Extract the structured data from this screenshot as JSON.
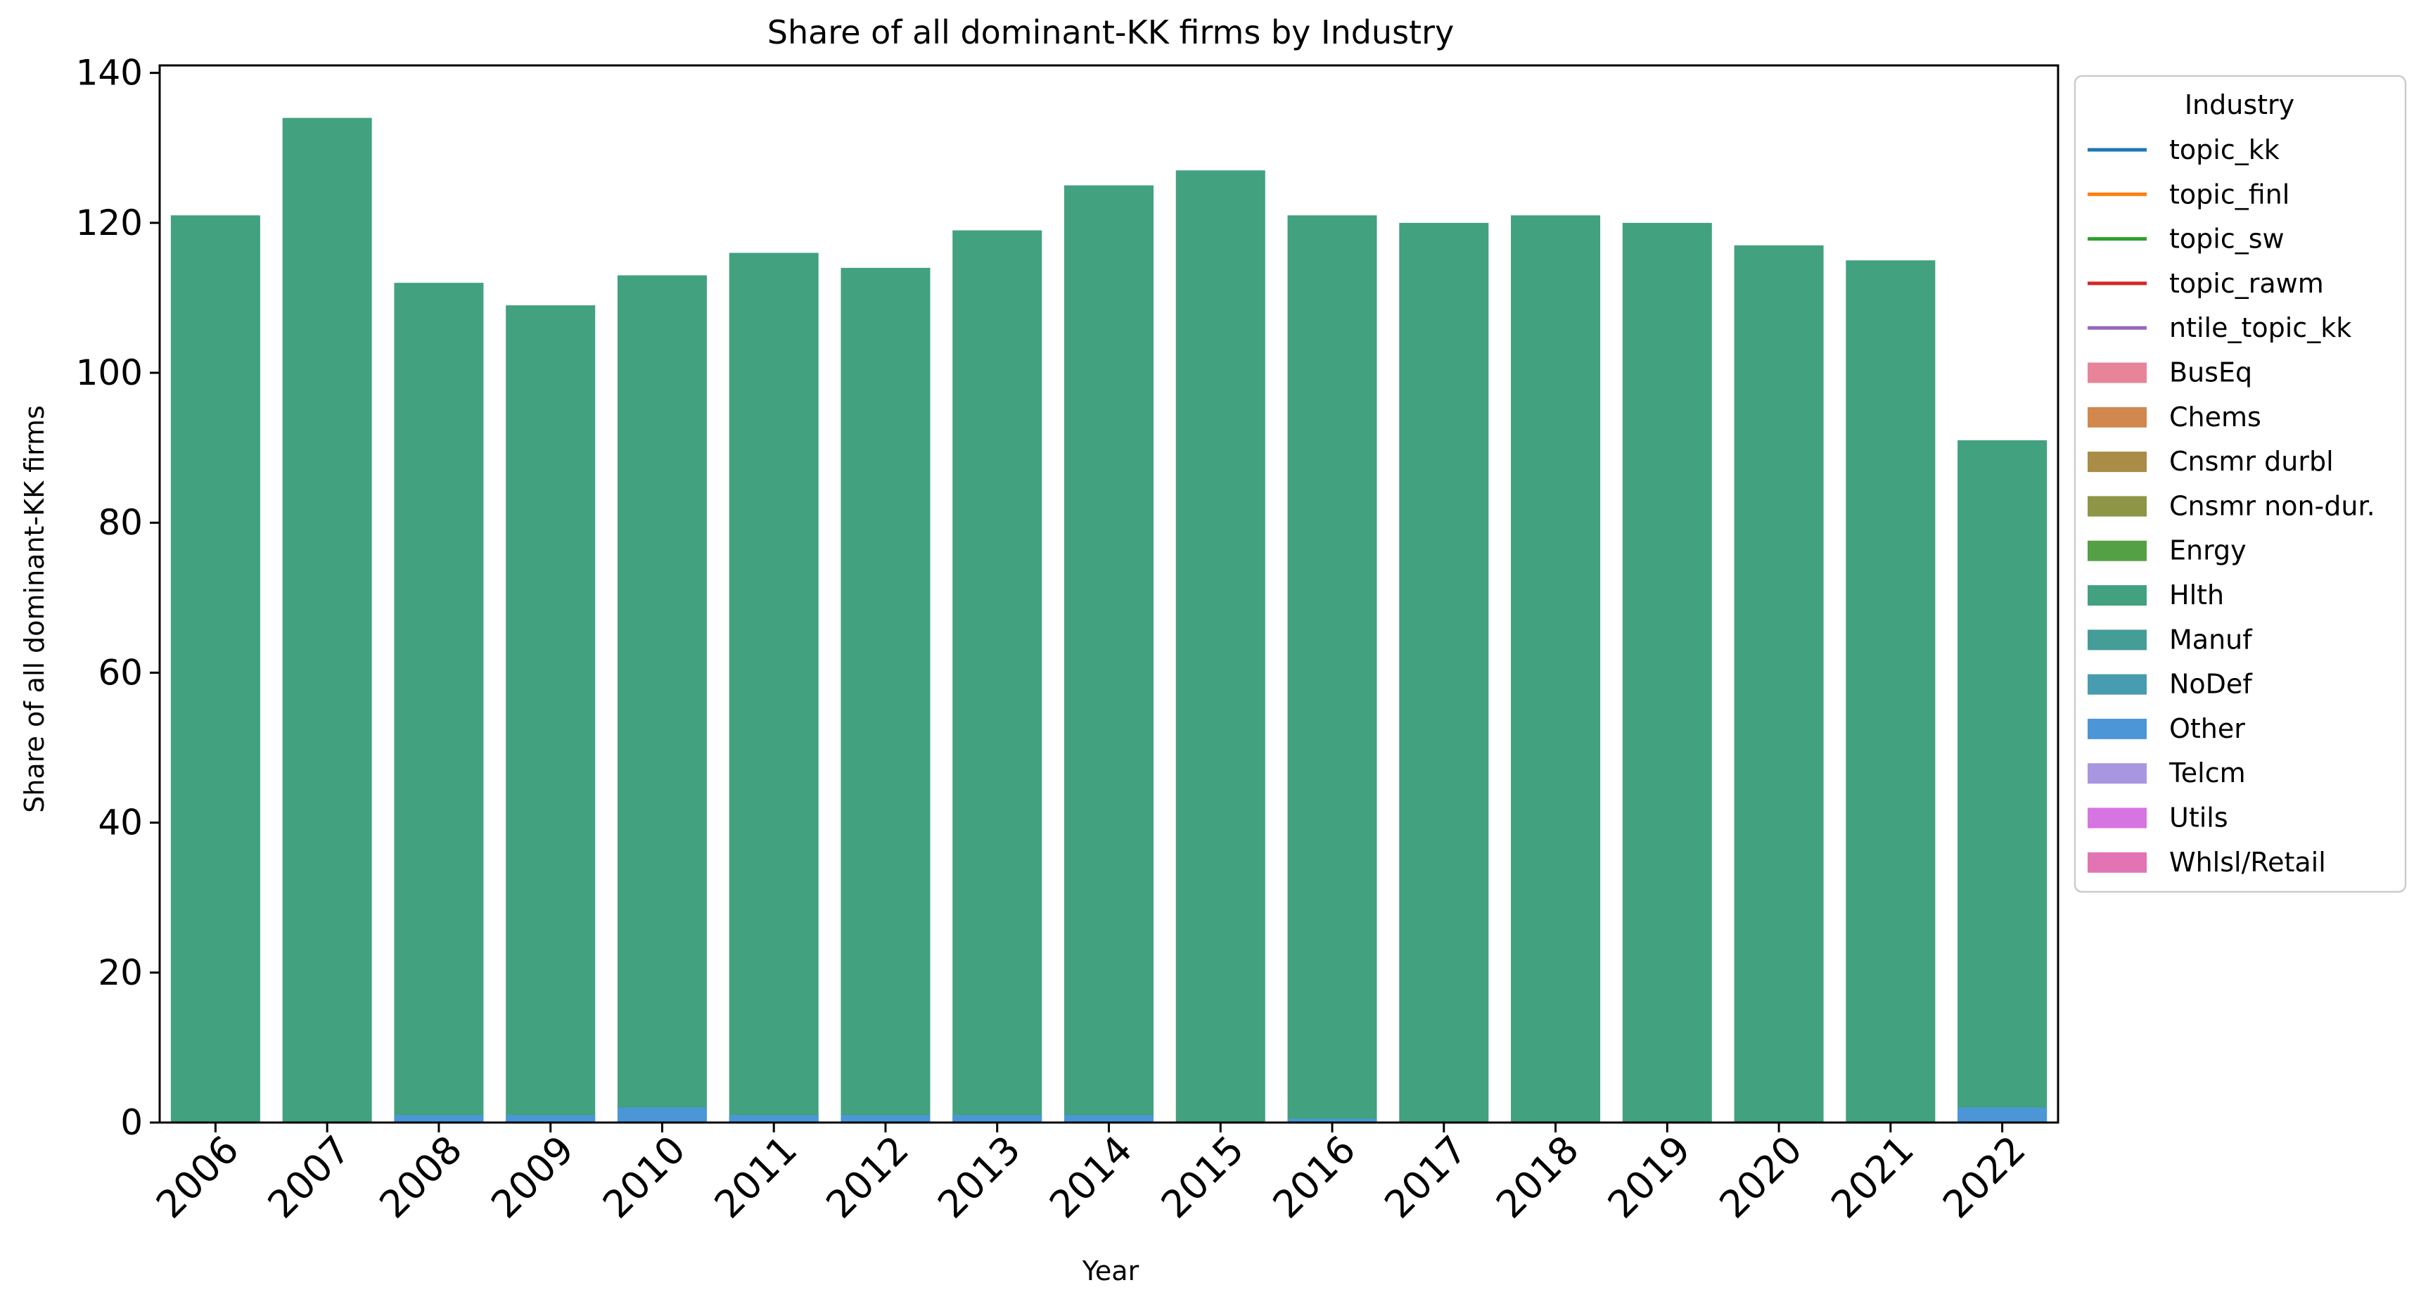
{
  "chart_data": {
    "type": "bar",
    "title": "Share of all dominant-KK firms by Industry",
    "xlabel": "Year",
    "ylabel": "Share of all dominant-KK firms",
    "categories": [
      "2006",
      "2007",
      "2008",
      "2009",
      "2010",
      "2011",
      "2012",
      "2013",
      "2014",
      "2015",
      "2016",
      "2017",
      "2018",
      "2019",
      "2020",
      "2021",
      "2022"
    ],
    "ylim": [
      0,
      141
    ],
    "yticks": [
      0,
      20,
      40,
      60,
      80,
      100,
      120,
      140
    ],
    "grid": false,
    "legend_position": "outside-right",
    "legend_title": "Industry",
    "series": [
      {
        "name": "Hlth",
        "color": "#42a17f",
        "values": [
          121,
          134,
          112,
          109,
          113,
          116,
          114,
          119,
          125,
          127,
          121,
          120,
          121,
          120,
          117,
          115,
          91
        ]
      },
      {
        "name": "Other",
        "color": "#4c96d7",
        "values": [
          0,
          0,
          1,
          1,
          2,
          1,
          1,
          1,
          1,
          0,
          0.5,
          0,
          0,
          0,
          0,
          0,
          2
        ]
      }
    ],
    "legend": [
      {
        "label": "topic_kk",
        "kind": "line",
        "color": "#1f77b4"
      },
      {
        "label": "topic_finl",
        "kind": "line",
        "color": "#ff7f0e"
      },
      {
        "label": "topic_sw",
        "kind": "line",
        "color": "#2ca02c"
      },
      {
        "label": "topic_rawm",
        "kind": "line",
        "color": "#d62728"
      },
      {
        "label": "ntile_topic_kk",
        "kind": "line",
        "color": "#9467bd"
      },
      {
        "label": "BusEq",
        "kind": "patch",
        "color": "#e8849a"
      },
      {
        "label": "Chems",
        "kind": "patch",
        "color": "#d2874c"
      },
      {
        "label": "Cnsmr durbl",
        "kind": "patch",
        "color": "#a98c45"
      },
      {
        "label": "Cnsmr non-dur.",
        "kind": "patch",
        "color": "#8e9546"
      },
      {
        "label": "Enrgy",
        "kind": "patch",
        "color": "#53a045"
      },
      {
        "label": "Hlth",
        "kind": "patch",
        "color": "#42a17f"
      },
      {
        "label": "Manuf",
        "kind": "patch",
        "color": "#459d99"
      },
      {
        "label": "NoDef",
        "kind": "patch",
        "color": "#479cb0"
      },
      {
        "label": "Other",
        "kind": "patch",
        "color": "#4c96d7"
      },
      {
        "label": "Telcm",
        "kind": "patch",
        "color": "#a996e0"
      },
      {
        "label": "Utils",
        "kind": "patch",
        "color": "#d674e2"
      },
      {
        "label": "Whlsl/Retail",
        "kind": "patch",
        "color": "#e274b4"
      }
    ]
  }
}
